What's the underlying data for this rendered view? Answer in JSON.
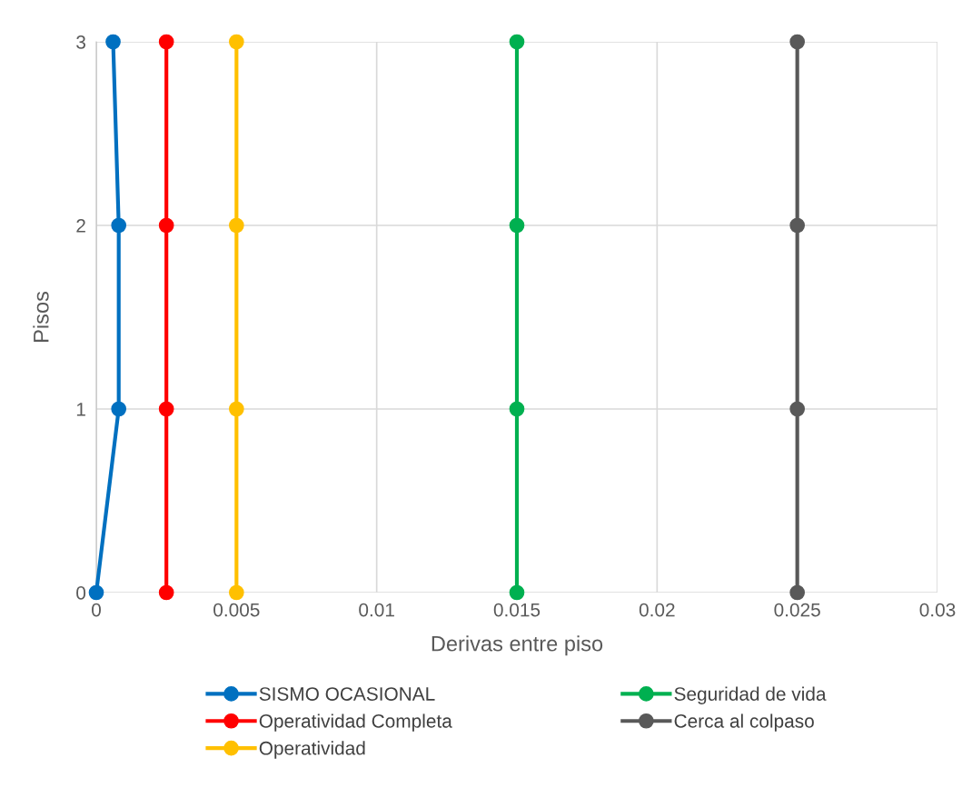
{
  "chart_data": {
    "type": "line",
    "xlabel": "Derivas entre piso",
    "ylabel": "Pisos",
    "xlim": [
      0,
      0.03
    ],
    "xticks": [
      0,
      0.005,
      0.01,
      0.015,
      0.02,
      0.025,
      0.03
    ],
    "ylim": [
      0,
      3
    ],
    "yticks": [
      0,
      1,
      2,
      3
    ],
    "grid": true,
    "legend": "bottom",
    "marker": "circle",
    "line_style": "solid",
    "series": [
      {
        "name": "SISMO OCASIONAL",
        "color": "#0070c0",
        "x": [
          0,
          0.0008,
          0.0008,
          0.0006
        ],
        "values": [
          0,
          1,
          2,
          3
        ]
      },
      {
        "name": "Operatividad Completa",
        "color": "#ff0000",
        "x": [
          0.0025,
          0.0025,
          0.0025,
          0.0025
        ],
        "values": [
          0,
          1,
          2,
          3
        ]
      },
      {
        "name": "Operatividad",
        "color": "#ffc000",
        "x": [
          0.005,
          0.005,
          0.005,
          0.005
        ],
        "values": [
          0,
          1,
          2,
          3
        ]
      },
      {
        "name": "Seguridad de vida",
        "color": "#00b050",
        "x": [
          0.015,
          0.015,
          0.015,
          0.015
        ],
        "values": [
          0,
          1,
          2,
          3
        ]
      },
      {
        "name": "Cerca al colpaso",
        "color": "#595959",
        "x": [
          0.025,
          0.025,
          0.025,
          0.025
        ],
        "values": [
          0,
          1,
          2,
          3
        ]
      }
    ]
  }
}
